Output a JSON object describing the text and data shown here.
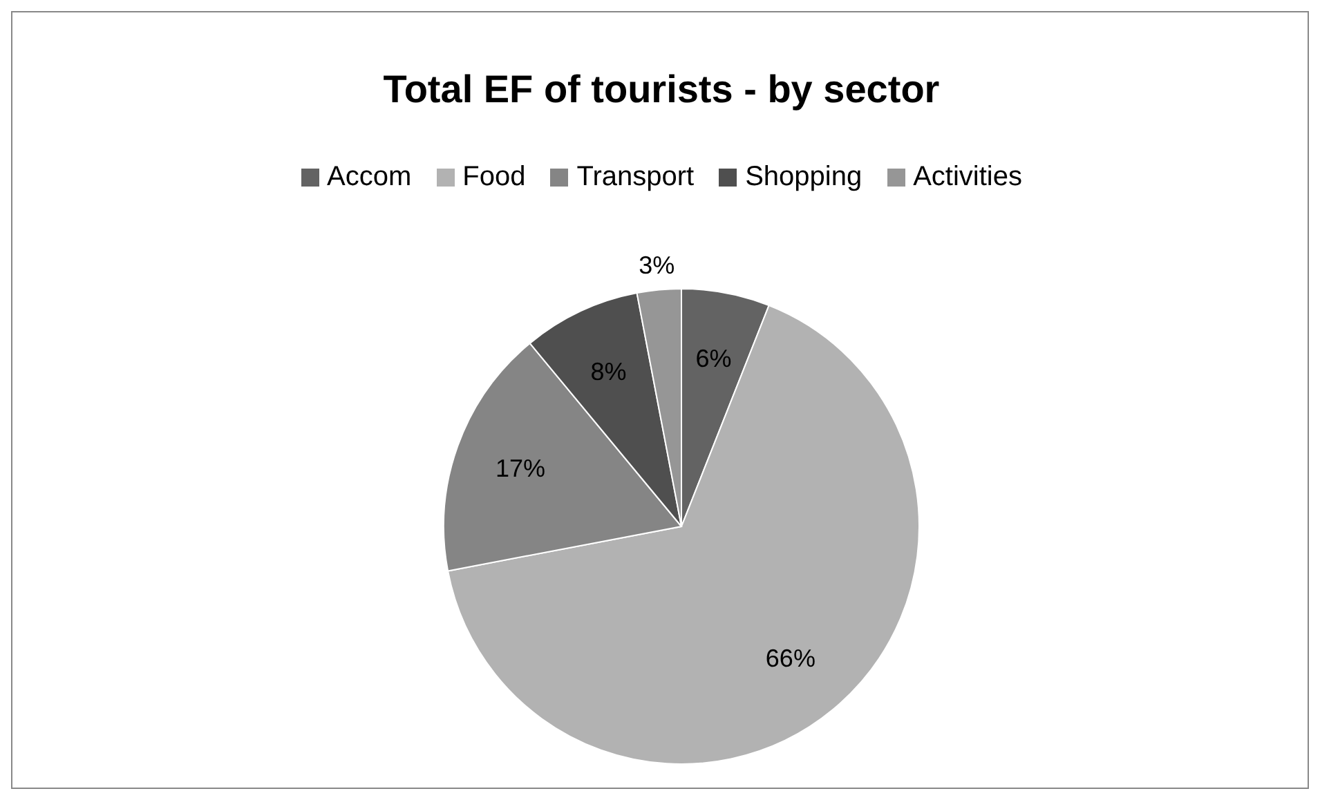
{
  "chart_data": {
    "type": "pie",
    "title": "Total EF of tourists - by sector",
    "categories": [
      "Accom",
      "Food",
      "Transport",
      "Shopping",
      "Activities"
    ],
    "values": [
      6,
      66,
      17,
      8,
      3
    ],
    "colors": [
      "#636363",
      "#b2b2b2",
      "#858585",
      "#4f4f4f",
      "#969696"
    ],
    "value_labels": [
      "6%",
      "66%",
      "17%",
      "8%",
      "3%"
    ],
    "legend": "top"
  }
}
